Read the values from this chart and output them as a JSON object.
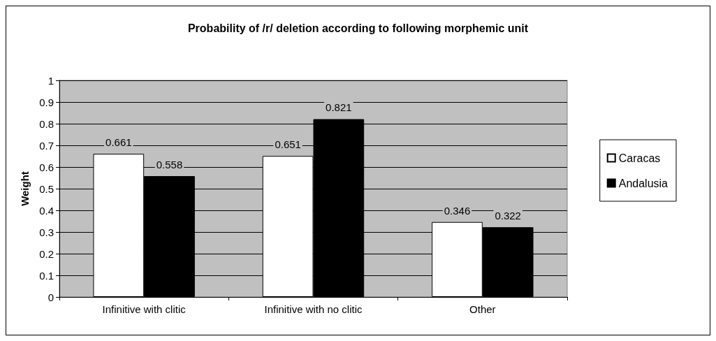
{
  "chart_data": {
    "type": "bar",
    "title": "Probability of /r/ deletion according to following morphemic unit",
    "ylabel": "Weight",
    "categories": [
      "Infinitive with clitic",
      "Infinitive with no clitic",
      "Other"
    ],
    "series": [
      {
        "name": "Caracas",
        "color": "#ffffff",
        "values": [
          0.661,
          0.651,
          0.346
        ]
      },
      {
        "name": "Andalusia",
        "color": "#000000",
        "values": [
          0.558,
          0.821,
          0.322
        ]
      }
    ],
    "ylim": [
      0,
      1
    ],
    "yticks": [
      0,
      0.1,
      0.2,
      0.3,
      0.4,
      0.5,
      0.6,
      0.7,
      0.8,
      0.9,
      1
    ],
    "grid": "y",
    "legend": "right",
    "data_labels": true
  }
}
